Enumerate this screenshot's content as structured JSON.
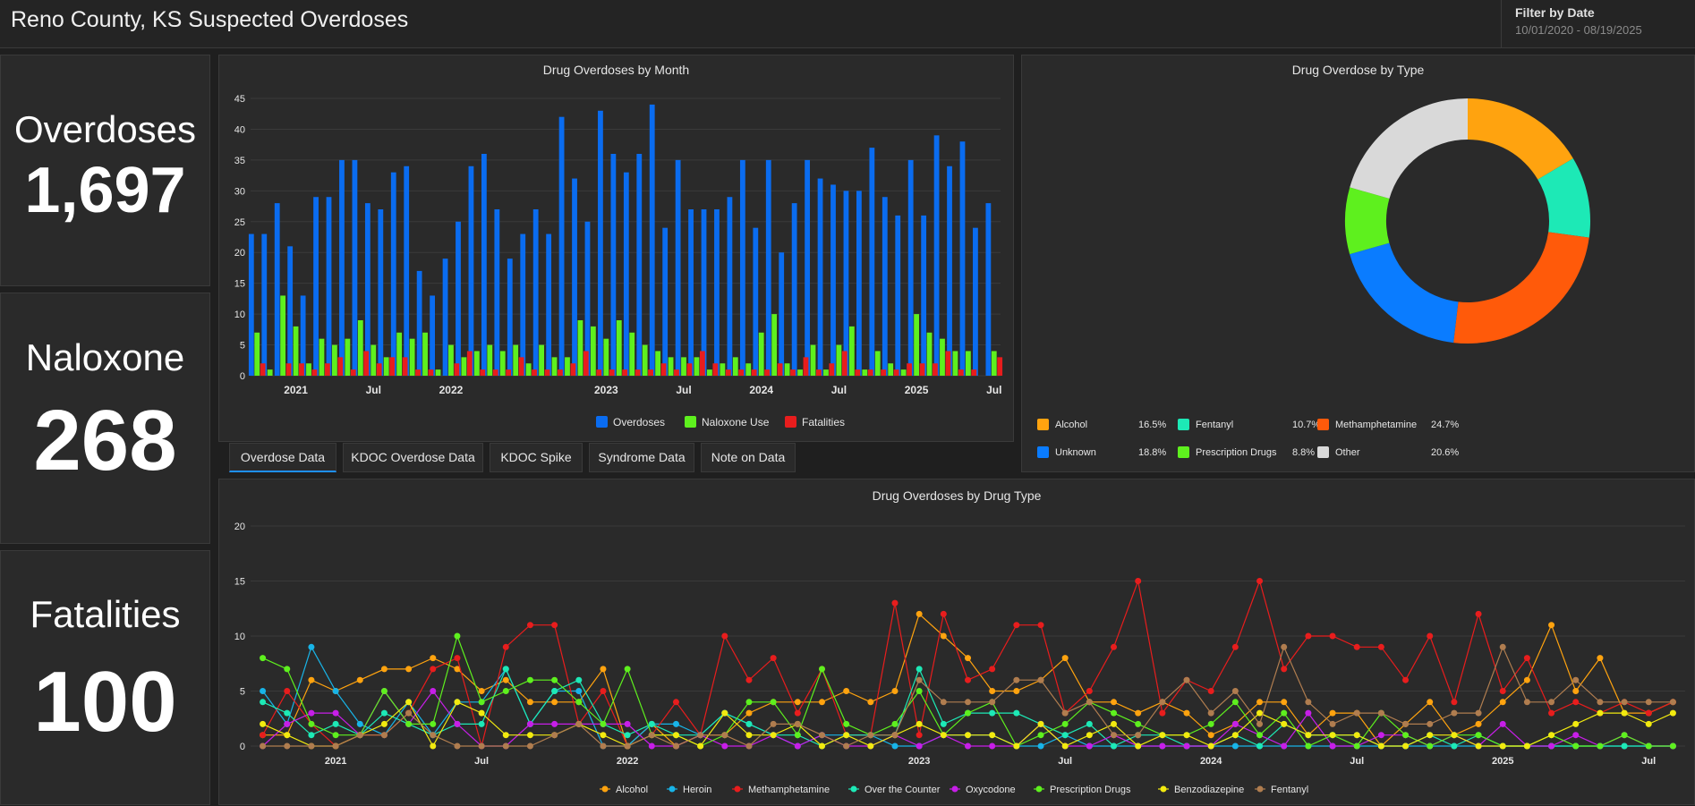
{
  "header": {
    "title": "Reno County, KS Suspected Overdoses"
  },
  "filter": {
    "label": "Filter by Date",
    "value": "10/01/2020 - 08/19/2025"
  },
  "stats": [
    {
      "label": "Overdoses",
      "value": "1,697"
    },
    {
      "label": "Naloxone",
      "value": "268"
    },
    {
      "label": "Fatalities",
      "value": "100"
    }
  ],
  "tabs": [
    {
      "label": "Overdose Data",
      "active": true
    },
    {
      "label": "KDOC Overdose Data",
      "active": false
    },
    {
      "label": "KDOC Spike",
      "active": false
    },
    {
      "label": "Syndrome Data",
      "active": false
    },
    {
      "label": "Note on Data",
      "active": false
    }
  ],
  "chart_data": [
    {
      "type": "bar",
      "title": "Drug Overdoses by Month",
      "x_tick_labels": [
        "2021",
        "Jul",
        "2022",
        "2023",
        "Jul",
        "2024",
        "Jul",
        "2025",
        "Jul"
      ],
      "x_tick_positions": [
        3,
        9,
        15,
        27,
        33,
        39,
        45,
        51,
        57
      ],
      "ylim": [
        0,
        45
      ],
      "yticks": [
        0,
        5,
        10,
        15,
        20,
        25,
        30,
        35,
        40,
        45
      ],
      "legend_position": "bottom",
      "series": [
        {
          "name": "Overdoses",
          "color": "#0a6cf0",
          "values": [
            23,
            23,
            28,
            21,
            13,
            29,
            29,
            35,
            35,
            28,
            27,
            33,
            34,
            17,
            13,
            19,
            25,
            34,
            36,
            27,
            19,
            23,
            27,
            23,
            42,
            32,
            25,
            43,
            36,
            33,
            36,
            44,
            24,
            35,
            27,
            27,
            27,
            29,
            35,
            24,
            35,
            20,
            28,
            35,
            32,
            31,
            30,
            30,
            37,
            29,
            26,
            35,
            26,
            39,
            34,
            38,
            24,
            28
          ]
        },
        {
          "name": "Naloxone Use",
          "color": "#5ef01e",
          "values": [
            7,
            1,
            13,
            8,
            2,
            6,
            5,
            6,
            9,
            5,
            3,
            7,
            6,
            7,
            1,
            5,
            3,
            4,
            5,
            4,
            5,
            2,
            5,
            3,
            3,
            9,
            8,
            6,
            9,
            7,
            5,
            4,
            3,
            3,
            3,
            1,
            2,
            3,
            2,
            7,
            10,
            2,
            1,
            5,
            1,
            5,
            8,
            1,
            4,
            2,
            1,
            10,
            7,
            6,
            4,
            4,
            0,
            4
          ]
        },
        {
          "name": "Fatalities",
          "color": "#e81d1d",
          "values": [
            2,
            0,
            2,
            2,
            1,
            2,
            3,
            1,
            4,
            2,
            3,
            3,
            1,
            1,
            0,
            2,
            4,
            1,
            1,
            1,
            3,
            1,
            1,
            1,
            2,
            4,
            1,
            1,
            1,
            1,
            1,
            2,
            1,
            2,
            4,
            2,
            1,
            1,
            1,
            1,
            2,
            1,
            3,
            1,
            2,
            4,
            1,
            1,
            1,
            1,
            2,
            2,
            2,
            4,
            1,
            1,
            0,
            3
          ]
        }
      ]
    },
    {
      "type": "pie",
      "title": "Drug Overdose by Type",
      "slices": [
        {
          "name": "Alcohol",
          "percent_label": "16.5%",
          "value": 16.5,
          "color": "#ffa30f"
        },
        {
          "name": "Fentanyl",
          "percent_label": "10.7%",
          "value": 10.7,
          "color": "#1de9b6"
        },
        {
          "name": "Methamphetamine",
          "percent_label": "24.7%",
          "value": 24.7,
          "color": "#ff5a0a"
        },
        {
          "name": "Unknown",
          "percent_label": "18.8%",
          "value": 18.8,
          "color": "#0a7cff"
        },
        {
          "name": "Prescription Drugs",
          "percent_label": "8.8%",
          "value": 8.8,
          "color": "#5ef01e"
        },
        {
          "name": "Other",
          "percent_label": "20.6%",
          "value": 20.6,
          "color": "#d9d9d9"
        }
      ]
    },
    {
      "type": "line",
      "title": "Drug Overdoses by Drug Type",
      "x_tick_labels": [
        "2021",
        "Jul",
        "2022",
        "2023",
        "Jul",
        "2024",
        "Jul",
        "2025",
        "Jul"
      ],
      "x_tick_positions": [
        3,
        9,
        15,
        27,
        33,
        39,
        45,
        51,
        57
      ],
      "ylim": [
        0,
        20
      ],
      "yticks": [
        0,
        5,
        10,
        15,
        20
      ],
      "legend_position": "bottom",
      "series": [
        {
          "name": "Alcohol",
          "color": "#ffa30f",
          "values": [
            1,
            1,
            6,
            5,
            6,
            7,
            7,
            8,
            7,
            5,
            6,
            4,
            4,
            4,
            7,
            0,
            2,
            0,
            1,
            1,
            3,
            4,
            4,
            4,
            5,
            4,
            5,
            12,
            10,
            8,
            5,
            5,
            6,
            8,
            4,
            4,
            3,
            4,
            3,
            1,
            2,
            4,
            4,
            1,
            3,
            3,
            0,
            2,
            4,
            1,
            2,
            4,
            6,
            11,
            5,
            8,
            3,
            3,
            4
          ]
        },
        {
          "name": "Heroin",
          "color": "#18b4e8",
          "values": [
            5,
            2,
            9,
            5,
            2,
            1,
            4,
            1,
            4,
            4,
            7,
            2,
            5,
            5,
            0,
            0,
            2,
            2,
            1,
            3,
            2,
            1,
            0,
            1,
            1,
            1,
            0,
            0,
            1,
            1,
            1,
            0,
            0,
            1,
            0,
            0,
            0,
            0,
            0,
            0,
            0,
            0,
            0,
            0,
            0,
            0,
            0,
            0,
            0,
            0,
            0,
            0,
            0,
            0,
            0,
            0,
            0,
            0,
            0
          ]
        },
        {
          "name": "Methamphetamine",
          "color": "#e81d1d",
          "values": [
            1,
            5,
            2,
            0,
            1,
            1,
            3,
            7,
            8,
            0,
            9,
            11,
            11,
            2,
            5,
            0,
            1,
            4,
            1,
            10,
            6,
            8,
            3,
            7,
            1,
            1,
            13,
            1,
            12,
            6,
            7,
            11,
            11,
            3,
            5,
            9,
            15,
            3,
            6,
            5,
            9,
            15,
            7,
            10,
            10,
            9,
            9,
            6,
            10,
            4,
            12,
            5,
            8,
            3,
            4,
            3,
            4,
            3,
            4
          ]
        },
        {
          "name": "Over the Counter",
          "color": "#1de9b6",
          "values": [
            4,
            3,
            1,
            2,
            1,
            3,
            2,
            1,
            2,
            2,
            7,
            2,
            5,
            6,
            2,
            1,
            2,
            1,
            1,
            3,
            2,
            1,
            1,
            0,
            1,
            1,
            1,
            7,
            2,
            3,
            3,
            3,
            2,
            1,
            2,
            0,
            1,
            1,
            0,
            0,
            1,
            0,
            2,
            1,
            1,
            1,
            0,
            0,
            1,
            0,
            1,
            0,
            0,
            0,
            0,
            0,
            0,
            0,
            0
          ]
        },
        {
          "name": "Oxycodone",
          "color": "#c71ee8",
          "values": [
            0,
            2,
            3,
            3,
            1,
            5,
            2,
            5,
            2,
            0,
            0,
            2,
            2,
            2,
            2,
            2,
            0,
            0,
            1,
            0,
            0,
            1,
            0,
            1,
            0,
            0,
            1,
            0,
            1,
            0,
            0,
            0,
            2,
            0,
            0,
            1,
            0,
            0,
            0,
            0,
            2,
            1,
            0,
            3,
            0,
            0,
            1,
            1,
            0,
            1,
            0,
            2,
            0,
            0,
            1,
            0,
            1,
            0,
            0
          ]
        },
        {
          "name": "Prescription Drugs",
          "color": "#5ef01e",
          "values": [
            8,
            7,
            2,
            1,
            1,
            5,
            2,
            2,
            10,
            4,
            5,
            6,
            6,
            4,
            2,
            7,
            1,
            1,
            0,
            1,
            4,
            4,
            1,
            7,
            2,
            1,
            2,
            5,
            1,
            3,
            4,
            0,
            1,
            2,
            4,
            3,
            2,
            1,
            1,
            2,
            4,
            1,
            3,
            0,
            1,
            0,
            3,
            1,
            0,
            1,
            1,
            0,
            0,
            1,
            0,
            0,
            1,
            0,
            0
          ]
        },
        {
          "name": "Benzodiazepine",
          "color": "#f2ea0f",
          "values": [
            2,
            1,
            0,
            0,
            1,
            2,
            4,
            0,
            4,
            3,
            1,
            1,
            1,
            2,
            1,
            0,
            1,
            1,
            0,
            3,
            1,
            1,
            2,
            0,
            1,
            0,
            1,
            2,
            1,
            1,
            1,
            0,
            2,
            0,
            1,
            2,
            0,
            1,
            1,
            0,
            1,
            3,
            2,
            1,
            1,
            1,
            0,
            0,
            1,
            1,
            0,
            0,
            0,
            1,
            2,
            3,
            3,
            2,
            3
          ]
        },
        {
          "name": "Fentanyl",
          "color": "#b07d4f",
          "values": [
            0,
            0,
            0,
            0,
            1,
            1,
            3,
            1,
            0,
            0,
            0,
            0,
            1,
            2,
            0,
            0,
            1,
            0,
            1,
            1,
            0,
            2,
            2,
            1,
            0,
            1,
            1,
            6,
            4,
            4,
            4,
            6,
            6,
            3,
            4,
            1,
            1,
            4,
            6,
            3,
            5,
            2,
            9,
            4,
            2,
            3,
            3,
            2,
            2,
            3,
            3,
            9,
            4,
            4,
            6,
            4,
            4,
            4,
            4
          ]
        }
      ]
    }
  ]
}
